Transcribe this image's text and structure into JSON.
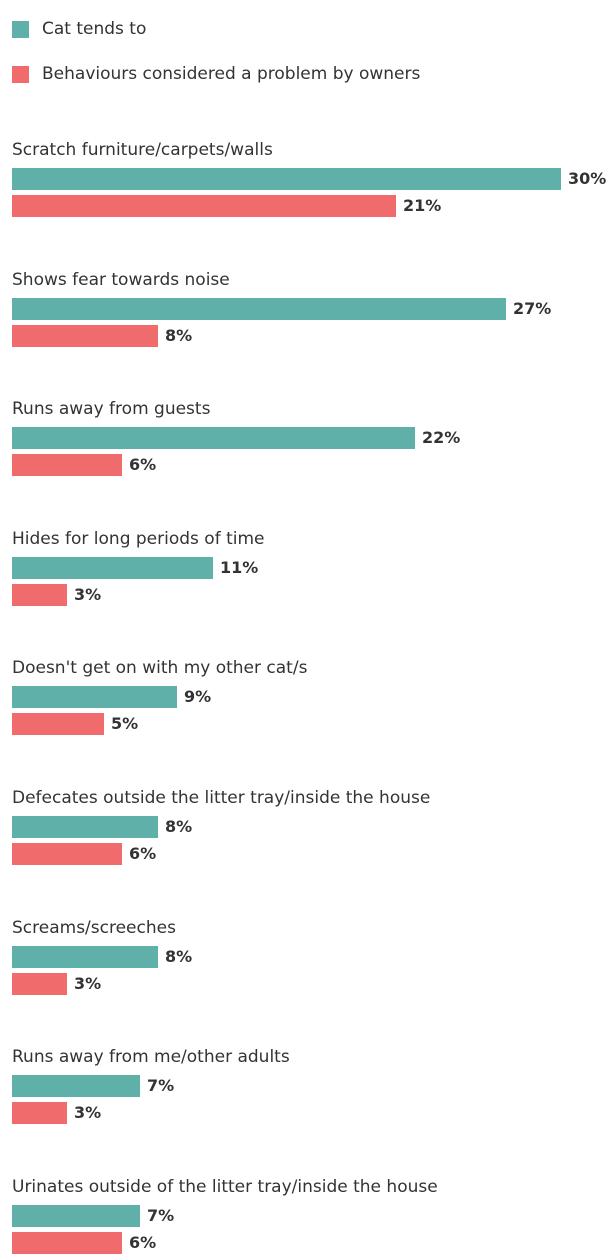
{
  "chart_data": {
    "type": "bar",
    "orientation": "horizontal",
    "value_unit": "%",
    "legend_position": "top-left",
    "colors": {
      "series_0": "#5fb0a8",
      "series_1": "#f06b6b"
    },
    "xlim": [
      0,
      30
    ],
    "categories": [
      "Scratch furniture/carpets/walls",
      "Shows fear towards noise",
      "Runs away from guests",
      "Hides for long periods of time",
      "Doesn't get on with my other cat/s",
      "Defecates outside the litter tray/inside the house",
      "Screams/screeches",
      "Runs away from me/other adults",
      "Urinates outside of the litter tray/inside the house"
    ],
    "series": [
      {
        "name": "Cat tends to",
        "values": [
          30,
          27,
          22,
          11,
          9,
          8,
          8,
          7,
          7
        ],
        "labels": [
          "30%",
          "27%",
          "22%",
          "11%",
          "9%",
          "8%",
          "8%",
          "7%",
          "7%"
        ]
      },
      {
        "name": "Behaviours considered a problem by owners",
        "values": [
          21,
          8,
          6,
          3,
          5,
          6,
          3,
          3,
          6
        ],
        "labels": [
          "21%",
          "8%",
          "6%",
          "3%",
          "5%",
          "6%",
          "3%",
          "3%",
          "6%"
        ]
      }
    ]
  }
}
